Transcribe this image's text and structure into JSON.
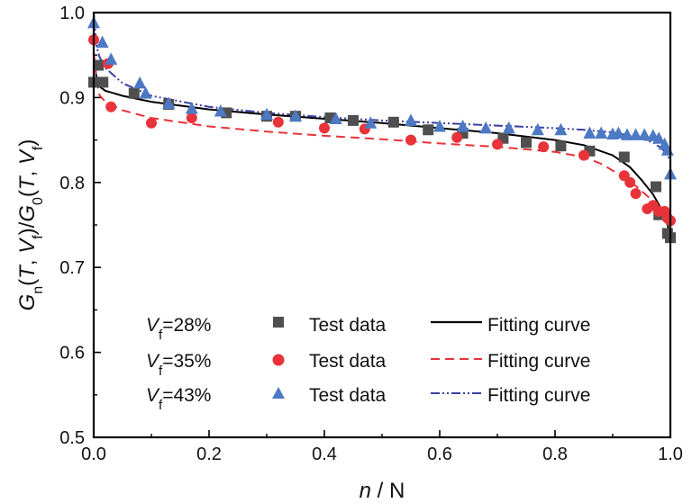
{
  "chart_data": {
    "type": "scatter",
    "xlabel": {
      "main": "n",
      "sep": " / ",
      "unit": "N"
    },
    "ylabel": {
      "G": "G",
      "n": "n",
      "mid1": "(",
      "T": "T",
      "comma": ", ",
      "V": "V",
      "f": "f",
      "close": ")/",
      "G0": "G",
      "zero": "0",
      "mid2": "(",
      "T2": "T",
      "comma2": ", ",
      "V2": "V",
      "f2": "f",
      "end": ")"
    },
    "xlim": [
      0.0,
      1.0
    ],
    "ylim": [
      0.5,
      1.0
    ],
    "xticks": [
      "0.0",
      "0.2",
      "0.4",
      "0.6",
      "0.8",
      "1.0"
    ],
    "yticks": [
      "0.5",
      "0.6",
      "0.7",
      "0.8",
      "0.9",
      "1.0"
    ],
    "legend_position": "bottom-left",
    "series": [
      {
        "label": "V_f=28%",
        "vf_var": "V",
        "vf_sub": "f",
        "vf_value": "=28%",
        "marker": "square",
        "color": "#4f4f4f",
        "line_color": "#000000",
        "line_style": "solid",
        "test_label": "Test data",
        "fit_label": "Fitting curve",
        "points": [
          [
            0.0,
            0.918
          ],
          [
            0.008,
            0.938
          ],
          [
            0.016,
            0.918
          ],
          [
            0.07,
            0.905
          ],
          [
            0.13,
            0.892
          ],
          [
            0.23,
            0.882
          ],
          [
            0.3,
            0.878
          ],
          [
            0.35,
            0.878
          ],
          [
            0.41,
            0.876
          ],
          [
            0.45,
            0.873
          ],
          [
            0.52,
            0.871
          ],
          [
            0.58,
            0.862
          ],
          [
            0.64,
            0.858
          ],
          [
            0.71,
            0.852
          ],
          [
            0.75,
            0.847
          ],
          [
            0.81,
            0.843
          ],
          [
            0.86,
            0.837
          ],
          [
            0.92,
            0.83
          ],
          [
            0.975,
            0.795
          ],
          [
            0.98,
            0.762
          ],
          [
            0.995,
            0.74
          ],
          [
            1.0,
            0.735
          ]
        ],
        "curve": [
          [
            0.0,
            0.95
          ],
          [
            0.005,
            0.922
          ],
          [
            0.01,
            0.913
          ],
          [
            0.02,
            0.908
          ],
          [
            0.05,
            0.902
          ],
          [
            0.1,
            0.895
          ],
          [
            0.2,
            0.886
          ],
          [
            0.3,
            0.88
          ],
          [
            0.4,
            0.875
          ],
          [
            0.5,
            0.87
          ],
          [
            0.6,
            0.864
          ],
          [
            0.7,
            0.858
          ],
          [
            0.8,
            0.85
          ],
          [
            0.85,
            0.844
          ],
          [
            0.9,
            0.832
          ],
          [
            0.93,
            0.818
          ],
          [
            0.95,
            0.803
          ],
          [
            0.97,
            0.786
          ],
          [
            0.985,
            0.768
          ],
          [
            0.995,
            0.75
          ],
          [
            1.0,
            0.738
          ]
        ]
      },
      {
        "label": "V_f=35%",
        "vf_var": "V",
        "vf_sub": "f",
        "vf_value": "=35%",
        "marker": "circle",
        "color": "#e8333a",
        "line_color": "#e8333a",
        "line_style": "dashed",
        "test_label": "Test data",
        "fit_label": "Fitting curve",
        "points": [
          [
            0.0,
            0.968
          ],
          [
            0.025,
            0.94
          ],
          [
            0.03,
            0.889
          ],
          [
            0.1,
            0.87
          ],
          [
            0.17,
            0.876
          ],
          [
            0.32,
            0.871
          ],
          [
            0.4,
            0.864
          ],
          [
            0.47,
            0.863
          ],
          [
            0.55,
            0.85
          ],
          [
            0.63,
            0.853
          ],
          [
            0.7,
            0.845
          ],
          [
            0.78,
            0.842
          ],
          [
            0.85,
            0.832
          ],
          [
            0.92,
            0.808
          ],
          [
            0.93,
            0.8
          ],
          [
            0.94,
            0.787
          ],
          [
            0.96,
            0.769
          ],
          [
            0.97,
            0.773
          ],
          [
            0.98,
            0.766
          ],
          [
            0.99,
            0.766
          ],
          [
            0.995,
            0.758
          ],
          [
            1.0,
            0.755
          ]
        ],
        "curve": [
          [
            0.0,
            0.955
          ],
          [
            0.005,
            0.92
          ],
          [
            0.01,
            0.903
          ],
          [
            0.02,
            0.895
          ],
          [
            0.05,
            0.885
          ],
          [
            0.1,
            0.876
          ],
          [
            0.2,
            0.866
          ],
          [
            0.3,
            0.86
          ],
          [
            0.4,
            0.855
          ],
          [
            0.5,
            0.851
          ],
          [
            0.6,
            0.846
          ],
          [
            0.7,
            0.842
          ],
          [
            0.8,
            0.836
          ],
          [
            0.85,
            0.83
          ],
          [
            0.88,
            0.822
          ],
          [
            0.91,
            0.81
          ],
          [
            0.94,
            0.796
          ],
          [
            0.96,
            0.784
          ],
          [
            0.98,
            0.772
          ],
          [
            0.995,
            0.762
          ],
          [
            1.0,
            0.758
          ]
        ]
      },
      {
        "label": "V_f=43%",
        "vf_var": "V",
        "vf_sub": "f",
        "vf_value": "=43%",
        "marker": "triangle",
        "color": "#4d79c4",
        "line_color": "#3a3fa0",
        "line_style": "dashdotdot",
        "test_label": "Test data",
        "fit_label": "Fitting curve",
        "points": [
          [
            0.0,
            0.988
          ],
          [
            0.015,
            0.965
          ],
          [
            0.03,
            0.945
          ],
          [
            0.08,
            0.917
          ],
          [
            0.09,
            0.905
          ],
          [
            0.13,
            0.893
          ],
          [
            0.17,
            0.887
          ],
          [
            0.22,
            0.884
          ],
          [
            0.3,
            0.88
          ],
          [
            0.35,
            0.878
          ],
          [
            0.42,
            0.875
          ],
          [
            0.48,
            0.87
          ],
          [
            0.55,
            0.873
          ],
          [
            0.6,
            0.866
          ],
          [
            0.64,
            0.866
          ],
          [
            0.68,
            0.864
          ],
          [
            0.72,
            0.864
          ],
          [
            0.77,
            0.862
          ],
          [
            0.81,
            0.862
          ],
          [
            0.86,
            0.858
          ],
          [
            0.88,
            0.858
          ],
          [
            0.9,
            0.857
          ],
          [
            0.91,
            0.858
          ],
          [
            0.925,
            0.856
          ],
          [
            0.94,
            0.856
          ],
          [
            0.955,
            0.856
          ],
          [
            0.97,
            0.855
          ],
          [
            0.98,
            0.852
          ],
          [
            0.99,
            0.845
          ],
          [
            0.995,
            0.838
          ],
          [
            1.0,
            0.81
          ]
        ],
        "curve": [
          [
            0.0,
            1.0
          ],
          [
            0.005,
            0.96
          ],
          [
            0.01,
            0.948
          ],
          [
            0.02,
            0.935
          ],
          [
            0.05,
            0.917
          ],
          [
            0.1,
            0.902
          ],
          [
            0.2,
            0.889
          ],
          [
            0.3,
            0.882
          ],
          [
            0.4,
            0.877
          ],
          [
            0.5,
            0.873
          ],
          [
            0.6,
            0.87
          ],
          [
            0.7,
            0.867
          ],
          [
            0.8,
            0.864
          ],
          [
            0.85,
            0.862
          ],
          [
            0.9,
            0.859
          ],
          [
            0.94,
            0.854
          ],
          [
            0.97,
            0.847
          ],
          [
            0.985,
            0.84
          ],
          [
            0.995,
            0.832
          ],
          [
            1.0,
            0.825
          ]
        ]
      }
    ]
  }
}
